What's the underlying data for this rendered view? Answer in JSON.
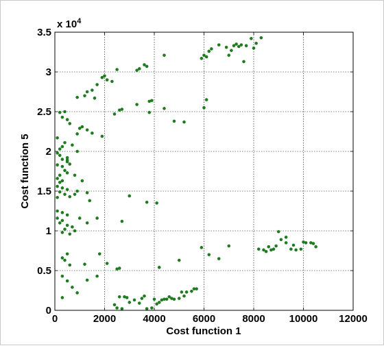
{
  "chart_data": {
    "type": "scatter",
    "xlabel": "Cost function 1",
    "ylabel": "Cost function 5",
    "y_multiplier_label": "x 10",
    "y_multiplier_exponent": "4",
    "xlim": [
      0,
      12000
    ],
    "ylim": [
      0,
      35000
    ],
    "x_ticks": [
      0,
      2000,
      4000,
      6000,
      8000,
      10000,
      12000
    ],
    "x_tick_labels": [
      "0",
      "2000",
      "4000",
      "6000",
      "8000",
      "10000",
      "12000"
    ],
    "y_ticks": [
      0,
      5000,
      10000,
      15000,
      20000,
      25000,
      30000,
      35000
    ],
    "y_tick_labels": [
      "0",
      "0.5",
      "1",
      "1.5",
      "2",
      "2.5",
      "3",
      "3.5"
    ],
    "grid": true,
    "marker_color": "#1e7b1e",
    "points": [
      [
        8300,
        34300
      ],
      [
        7900,
        34200
      ],
      [
        8100,
        33600
      ],
      [
        7300,
        33500
      ],
      [
        7500,
        33400
      ],
      [
        7200,
        33300
      ],
      [
        7400,
        33200
      ],
      [
        6900,
        33100
      ],
      [
        6600,
        33400
      ],
      [
        6300,
        32900
      ],
      [
        6200,
        32600
      ],
      [
        6000,
        32100
      ],
      [
        6100,
        31900
      ],
      [
        5900,
        31700
      ],
      [
        7100,
        32700
      ],
      [
        7700,
        33300
      ],
      [
        7600,
        31300
      ],
      [
        8000,
        33000
      ],
      [
        7000,
        32100
      ],
      [
        4400,
        32100
      ],
      [
        3700,
        30700
      ],
      [
        3600,
        30900
      ],
      [
        3300,
        30200
      ],
      [
        3400,
        30400
      ],
      [
        2500,
        30300
      ],
      [
        2000,
        29500
      ],
      [
        1900,
        29300
      ],
      [
        2100,
        29000
      ],
      [
        2300,
        28800
      ],
      [
        900,
        26800
      ],
      [
        1300,
        27500
      ],
      [
        1500,
        27700
      ],
      [
        1700,
        28400
      ],
      [
        1200,
        27000
      ],
      [
        1600,
        26700
      ],
      [
        400,
        25000
      ],
      [
        200,
        24900
      ],
      [
        300,
        24300
      ],
      [
        500,
        24000
      ],
      [
        600,
        23500
      ],
      [
        1000,
        22900
      ],
      [
        1100,
        23100
      ],
      [
        900,
        22200
      ],
      [
        1300,
        22700
      ],
      [
        1500,
        22300
      ],
      [
        1900,
        21900
      ],
      [
        2400,
        24700
      ],
      [
        2600,
        25200
      ],
      [
        2700,
        25300
      ],
      [
        3300,
        25900
      ],
      [
        3800,
        26300
      ],
      [
        3900,
        26400
      ],
      [
        3800,
        24900
      ],
      [
        4400,
        25400
      ],
      [
        4800,
        23800
      ],
      [
        5200,
        23700
      ],
      [
        6000,
        25500
      ],
      [
        6100,
        26500
      ],
      [
        100,
        21700
      ],
      [
        200,
        20300
      ],
      [
        300,
        20600
      ],
      [
        400,
        21100
      ],
      [
        100,
        19800
      ],
      [
        200,
        19500
      ],
      [
        300,
        19000
      ],
      [
        500,
        18900
      ],
      [
        100,
        18300
      ],
      [
        300,
        18100
      ],
      [
        400,
        17600
      ],
      [
        500,
        17300
      ],
      [
        200,
        17000
      ],
      [
        100,
        16600
      ],
      [
        300,
        16300
      ],
      [
        500,
        18700
      ],
      [
        600,
        18400
      ],
      [
        700,
        20800
      ],
      [
        800,
        17000
      ],
      [
        900,
        20000
      ],
      [
        500,
        19200
      ],
      [
        200,
        16100
      ],
      [
        100,
        15600
      ],
      [
        300,
        15400
      ],
      [
        500,
        15200
      ],
      [
        200,
        14900
      ],
      [
        400,
        14600
      ],
      [
        100,
        14200
      ],
      [
        600,
        14300
      ],
      [
        800,
        14600
      ],
      [
        900,
        15000
      ],
      [
        1100,
        16300
      ],
      [
        1300,
        14800
      ],
      [
        1400,
        13800
      ],
      [
        100,
        12500
      ],
      [
        300,
        12300
      ],
      [
        500,
        12000
      ],
      [
        100,
        11600
      ],
      [
        300,
        11300
      ],
      [
        200,
        11000
      ],
      [
        500,
        10700
      ],
      [
        700,
        10500
      ],
      [
        400,
        10200
      ],
      [
        800,
        10000
      ],
      [
        300,
        9800
      ],
      [
        600,
        9600
      ],
      [
        1000,
        11600
      ],
      [
        1300,
        11000
      ],
      [
        1700,
        11600
      ],
      [
        2700,
        11200
      ],
      [
        3000,
        14400
      ],
      [
        3700,
        13600
      ],
      [
        4100,
        13500
      ],
      [
        500,
        7100
      ],
      [
        300,
        6600
      ],
      [
        400,
        6300
      ],
      [
        600,
        5700
      ],
      [
        300,
        4300
      ],
      [
        500,
        3700
      ],
      [
        700,
        2900
      ],
      [
        900,
        2200
      ],
      [
        300,
        1600
      ],
      [
        1200,
        5800
      ],
      [
        1300,
        3800
      ],
      [
        1800,
        7100
      ],
      [
        1700,
        4300
      ],
      [
        2100,
        5900
      ],
      [
        2500,
        5200
      ],
      [
        2600,
        5300
      ],
      [
        2400,
        700
      ],
      [
        2500,
        300
      ],
      [
        2700,
        200
      ],
      [
        2600,
        1700
      ],
      [
        2800,
        1700
      ],
      [
        2900,
        1600
      ],
      [
        3000,
        1000
      ],
      [
        3200,
        1300
      ],
      [
        3400,
        900
      ],
      [
        3500,
        1500
      ],
      [
        3600,
        1800
      ],
      [
        3700,
        200
      ],
      [
        3900,
        300
      ],
      [
        4000,
        1400
      ],
      [
        4100,
        800
      ],
      [
        4200,
        1000
      ],
      [
        4300,
        1300
      ],
      [
        4400,
        1400
      ],
      [
        4500,
        1400
      ],
      [
        4600,
        1700
      ],
      [
        4700,
        1500
      ],
      [
        4800,
        1400
      ],
      [
        5000,
        1500
      ],
      [
        5100,
        2300
      ],
      [
        5200,
        1800
      ],
      [
        5300,
        2300
      ],
      [
        5500,
        2400
      ],
      [
        5600,
        2700
      ],
      [
        5700,
        2700
      ],
      [
        4200,
        5400
      ],
      [
        5000,
        6300
      ],
      [
        5900,
        7900
      ],
      [
        6200,
        7000
      ],
      [
        6600,
        6500
      ],
      [
        7000,
        8100
      ],
      [
        8400,
        7600
      ],
      [
        8500,
        7400
      ],
      [
        8700,
        7600
      ],
      [
        8800,
        7700
      ],
      [
        9000,
        9900
      ],
      [
        9100,
        8900
      ],
      [
        9300,
        8500
      ],
      [
        9300,
        9200
      ],
      [
        9500,
        7700
      ],
      [
        9600,
        8200
      ],
      [
        9700,
        7600
      ],
      [
        9900,
        7700
      ],
      [
        10000,
        8600
      ],
      [
        10100,
        8500
      ],
      [
        10300,
        8500
      ],
      [
        10400,
        8400
      ],
      [
        10500,
        8000
      ],
      [
        8200,
        7700
      ],
      [
        8600,
        8000
      ],
      [
        8900,
        8100
      ]
    ]
  }
}
